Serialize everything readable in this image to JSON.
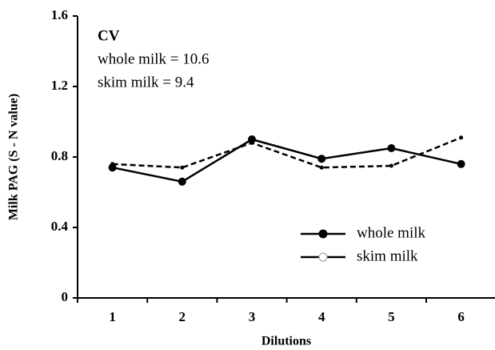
{
  "chart_data": {
    "type": "line",
    "categories": [
      "1",
      "2",
      "3",
      "4",
      "5",
      "6"
    ],
    "series": [
      {
        "name": "whole milk",
        "color": "#000000",
        "dashed": false,
        "marker": "filled-circle",
        "values": [
          0.74,
          0.66,
          0.9,
          0.79,
          0.85,
          0.76
        ]
      },
      {
        "name": "skim milk",
        "color": "#000000",
        "dashed": true,
        "marker": "open-circle",
        "values": [
          0.76,
          0.74,
          0.88,
          0.74,
          0.75,
          0.91
        ]
      }
    ],
    "ylim": [
      0,
      1.6
    ],
    "yticks": [
      {
        "value": 0,
        "label": "0"
      },
      {
        "value": 0.4,
        "label": "0.4"
      },
      {
        "value": 0.8,
        "label": "0.8"
      },
      {
        "value": 1.2,
        "label": "1.2"
      },
      {
        "value": 1.6,
        "label": "1.6"
      }
    ],
    "x_label": "Dilutions",
    "y_label": "Milk  PAG (S - N value)",
    "annotations": [
      "CV",
      "whole milk = 10.6",
      "skim milk = 9.4"
    ],
    "legend": "lower right",
    "grid": false
  }
}
